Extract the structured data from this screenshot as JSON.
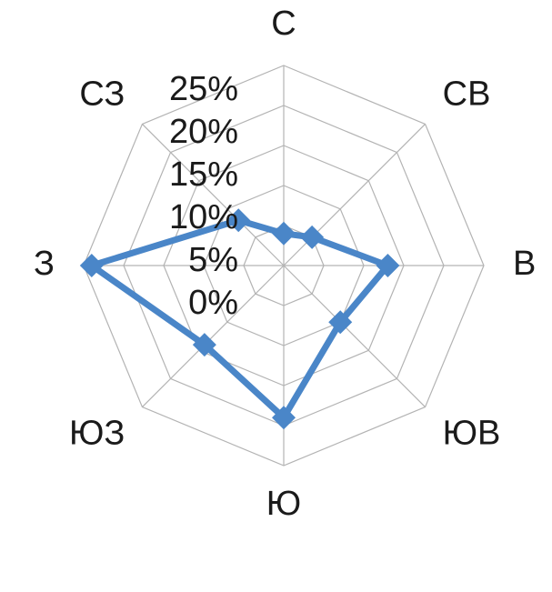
{
  "chart_data": {
    "type": "radar",
    "categories": [
      "С",
      "СВ",
      "В",
      "ЮВ",
      "Ю",
      "ЮЗ",
      "З",
      "СЗ"
    ],
    "series": [
      {
        "values": [
          4,
          5,
          13,
          10,
          19,
          14,
          24,
          8
        ],
        "color": "#4a86c8"
      }
    ],
    "r_ticks": [
      "0%",
      "5%",
      "10%",
      "15%",
      "20%",
      "25%"
    ],
    "r_range": [
      0,
      25
    ],
    "grid": true,
    "legend": "none"
  }
}
